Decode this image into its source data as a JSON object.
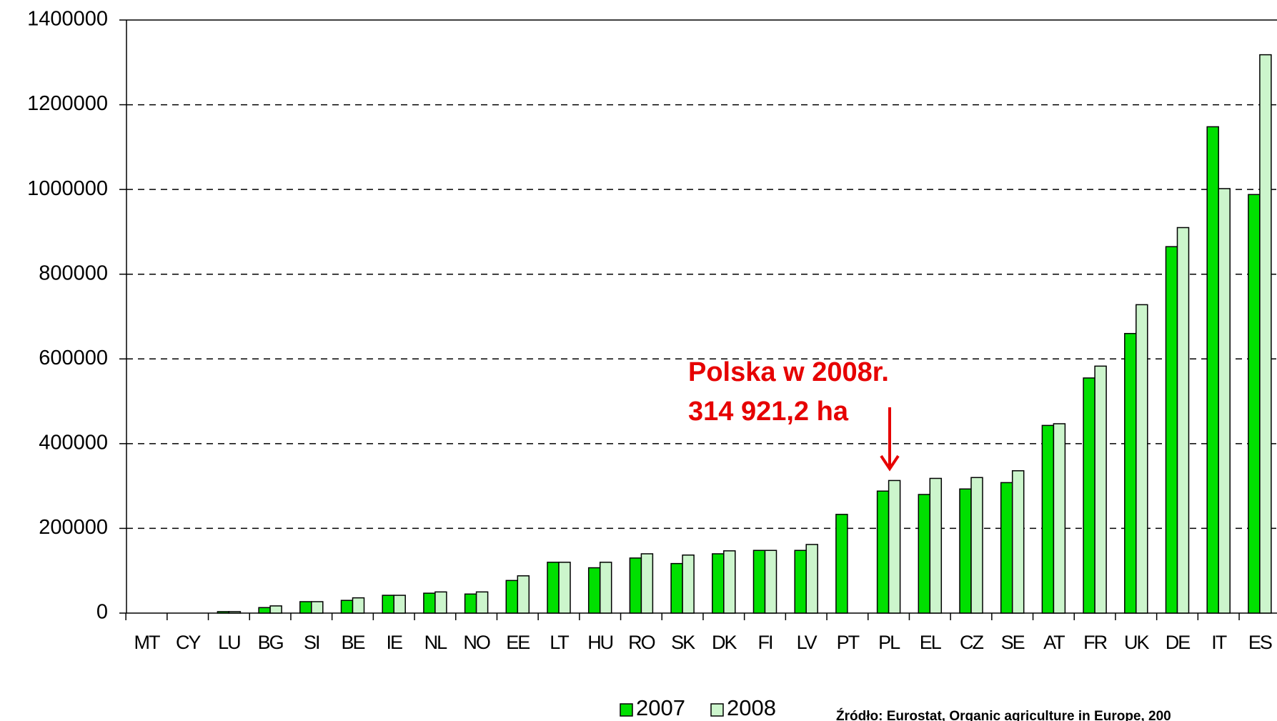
{
  "chart_data": {
    "type": "bar",
    "categories": [
      "MT",
      "CY",
      "LU",
      "BG",
      "SI",
      "BE",
      "IE",
      "NL",
      "NO",
      "EE",
      "LT",
      "HU",
      "RO",
      "SK",
      "DK",
      "FI",
      "LV",
      "PT",
      "PL",
      "EL",
      "CZ",
      "SE",
      "AT",
      "FR",
      "UK",
      "DE",
      "IT",
      "ES"
    ],
    "series": [
      {
        "name": "2007",
        "color": "#00e000",
        "values": [
          0,
          0,
          3500,
          13000,
          27000,
          30000,
          42000,
          47000,
          45000,
          77000,
          120000,
          107000,
          130000,
          117000,
          140000,
          148000,
          148000,
          233000,
          288000,
          280000,
          293000,
          308000,
          443000,
          555000,
          660000,
          865000,
          1148000,
          988000
        ]
      },
      {
        "name": "2008",
        "color": "#ccf5cc",
        "values": [
          0,
          0,
          3500,
          17000,
          27000,
          36000,
          42000,
          50000,
          50000,
          88000,
          120000,
          120000,
          140000,
          137000,
          147000,
          148000,
          162000,
          null,
          313000,
          318000,
          320000,
          336000,
          447000,
          583000,
          728000,
          910000,
          1002000,
          1318000
        ]
      }
    ],
    "ylim": [
      0,
      1400000
    ],
    "yticks": [
      0,
      200000,
      400000,
      600000,
      800000,
      1000000,
      1200000,
      1400000
    ],
    "grid": true,
    "annotations": [
      "Polska w 2008r.",
      "314 921,2 ha"
    ],
    "source": "Źródło: Eurostat, Organic agriculture in Europe, 200"
  }
}
